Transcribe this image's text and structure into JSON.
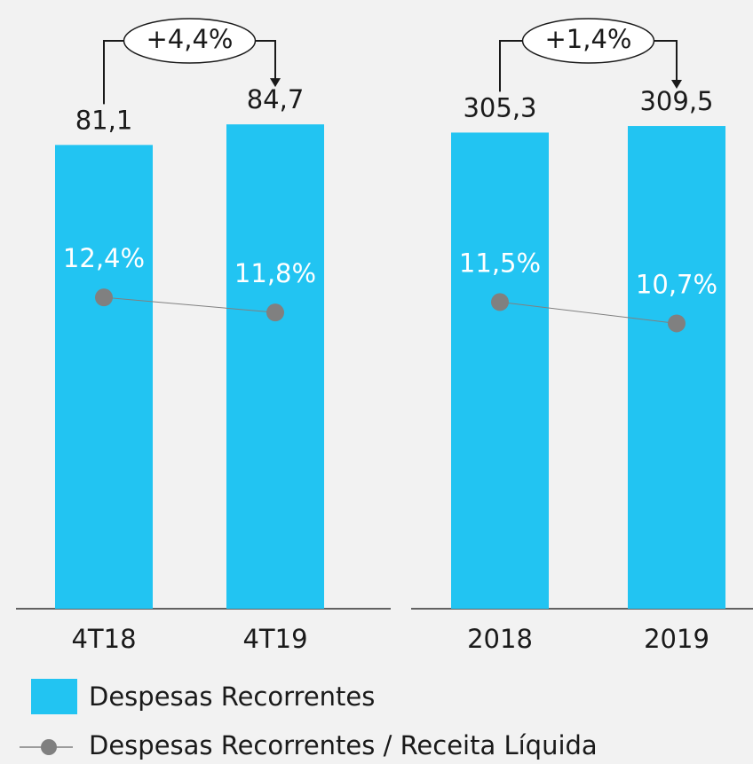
{
  "chart_data": [
    {
      "type": "bar",
      "categories": [
        "4T18",
        "4T19"
      ],
      "series": [
        {
          "name": "Despesas Recorrentes",
          "color": "#22c4f2",
          "values": [
            81.1,
            84.7
          ],
          "value_labels": [
            "81,1",
            "84,7"
          ]
        },
        {
          "name": "Despesas Recorrentes / Receita Líquida",
          "type": "line",
          "axis": "y2",
          "color": "#808080",
          "values": [
            12.4,
            11.8
          ],
          "value_labels": [
            "12,4%",
            "11,8%"
          ]
        }
      ],
      "ylim": [
        0,
        90
      ],
      "y2lim": [
        0,
        20.5
      ],
      "annotations": [
        "+4,4%"
      ]
    },
    {
      "type": "bar",
      "categories": [
        "2018",
        "2019"
      ],
      "series": [
        {
          "color": "#22c4f2",
          "values": [
            305.3,
            309.5
          ],
          "value_labels": [
            "305,3",
            "309,5"
          ]
        },
        {
          "type": "line",
          "axis": "y2",
          "color": "#808080",
          "values": [
            11.5,
            10.7
          ],
          "value_labels": [
            "11,5%",
            "10,7%"
          ]
        }
      ],
      "ylim": [
        0,
        330
      ],
      "y2lim": [
        0,
        19.3
      ],
      "annotations": [
        "+1,4%"
      ]
    }
  ]
}
